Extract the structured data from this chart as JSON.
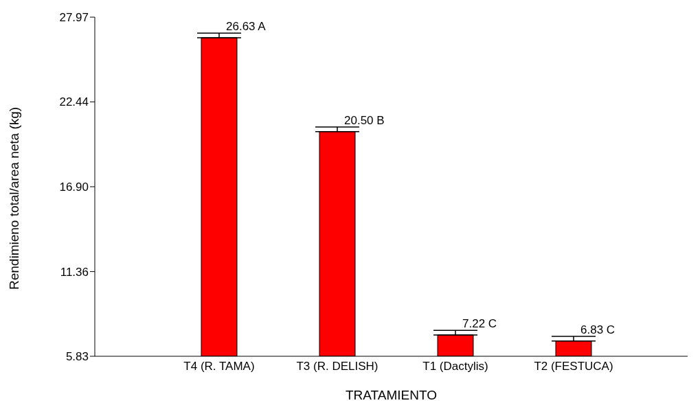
{
  "chart_data": {
    "type": "bar",
    "xlabel": "TRATAMIENTO",
    "ylabel": "Rendimieno total/area neta (kg)",
    "categories": [
      "T4 (R. TAMA)",
      "T3 (R. DELISH)",
      "T1 (Dactylis)",
      "T2 (FESTUCA)"
    ],
    "values": [
      26.63,
      20.5,
      7.22,
      6.83
    ],
    "errors": [
      [
        26.63,
        26.93
      ],
      [
        20.5,
        20.8
      ],
      [
        7.22,
        7.52
      ],
      [
        6.83,
        7.13
      ]
    ],
    "value_labels": [
      "26.63 A",
      "20.50 B",
      "7.22 C",
      "6.83 C"
    ],
    "color": "#ff0000",
    "ylim": [
      5.83,
      27.97
    ],
    "yticks": [
      {
        "value": 5.83,
        "label": "5.83"
      },
      {
        "value": 11.36,
        "label": "11.36"
      },
      {
        "value": 16.9,
        "label": "16.90"
      },
      {
        "value": 22.44,
        "label": "22.44"
      },
      {
        "value": 27.97,
        "label": "27.97"
      }
    ],
    "grid": false,
    "legend": false
  }
}
